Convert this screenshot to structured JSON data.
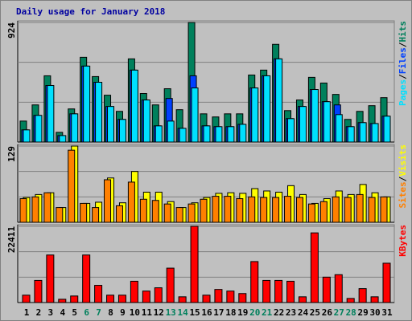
{
  "title": "Daily usage for January 2018",
  "legend_separator": "/",
  "chart_data": [
    {
      "type": "bar",
      "ylim": [
        0,
        924
      ],
      "yticks": [
        924
      ],
      "gridlines": [
        308,
        616
      ],
      "series": [
        {
          "name": "Hits",
          "color": "#00805c",
          "values": [
            162,
            287,
            512,
            75,
            256,
            655,
            506,
            362,
            237,
            643,
            375,
            287,
            412,
            250,
            924,
            218,
            194,
            218,
            218,
            518,
            556,
            755,
            243,
            325,
            500,
            456,
            368,
            175,
            237,
            281,
            343
          ]
        },
        {
          "name": "Files",
          "color": "#0040ff",
          "values": [
            94,
            206,
            437,
            50,
            218,
            587,
            462,
            275,
            175,
            556,
            325,
            125,
            337,
            106,
            512,
            125,
            119,
            119,
            137,
            418,
            512,
            643,
            181,
            275,
            406,
            312,
            287,
            119,
            150,
            143,
            200
          ]
        },
        {
          "name": "Pages",
          "color": "#00e0ff",
          "values": [
            94,
            206,
            437,
            50,
            218,
            587,
            462,
            275,
            175,
            556,
            325,
            125,
            162,
            106,
            418,
            125,
            119,
            119,
            137,
            418,
            512,
            643,
            181,
            275,
            406,
            312,
            212,
            119,
            150,
            143,
            200
          ]
        }
      ]
    },
    {
      "type": "bar",
      "ylim": [
        0,
        129
      ],
      "yticks": [
        129
      ],
      "gridlines": [
        43,
        86
      ],
      "series": [
        {
          "name": "Visits",
          "color": "#ffff00",
          "values": [
            42,
            47,
            50,
            25,
            129,
            32,
            34,
            75,
            33,
            86,
            51,
            51,
            35,
            25,
            33,
            42,
            49,
            50,
            49,
            57,
            53,
            51,
            62,
            47,
            32,
            40,
            53,
            47,
            64,
            50,
            43
          ]
        },
        {
          "name": "Sites",
          "color": "#ff8000",
          "values": [
            40,
            43,
            50,
            25,
            122,
            32,
            25,
            72,
            28,
            68,
            39,
            37,
            31,
            25,
            31,
            39,
            44,
            44,
            40,
            43,
            42,
            42,
            44,
            42,
            31,
            35,
            43,
            42,
            47,
            42,
            43
          ]
        }
      ]
    },
    {
      "type": "bar",
      "ylim": [
        0,
        22411
      ],
      "yticks": [
        22411
      ],
      "gridlines": [
        7470,
        14941
      ],
      "categories": [
        "1",
        "2",
        "3",
        "4",
        "5",
        "6",
        "7",
        "8",
        "9",
        "10",
        "11",
        "12",
        "13",
        "14",
        "15",
        "16",
        "17",
        "18",
        "19",
        "20",
        "21",
        "22",
        "23",
        "24",
        "25",
        "26",
        "27",
        "28",
        "29",
        "30",
        "31"
      ],
      "category_colors": [
        "#000000",
        "#000000",
        "#000000",
        "#000000",
        "#000000",
        "#00805c",
        "#00805c",
        "#000000",
        "#000000",
        "#000000",
        "#000000",
        "#000000",
        "#00805c",
        "#00805c",
        "#000000",
        "#000000",
        "#000000",
        "#000000",
        "#000000",
        "#00805c",
        "#00805c",
        "#000000",
        "#000000",
        "#000000",
        "#000000",
        "#000000",
        "#00805c",
        "#00805c",
        "#000000",
        "#000000",
        "#000000"
      ],
      "series": [
        {
          "name": "KBytes",
          "color": "#ff0000",
          "values": [
            2169,
            6506,
            13977,
            964,
            1928,
            13977,
            5061,
            2169,
            2169,
            6266,
            3374,
            4338,
            10121,
            1687,
            22411,
            2169,
            3856,
            3374,
            2651,
            12049,
            6506,
            6506,
            6266,
            1687,
            20483,
            7470,
            8193,
            1205,
            4097,
            1687,
            11567
          ]
        }
      ]
    }
  ]
}
